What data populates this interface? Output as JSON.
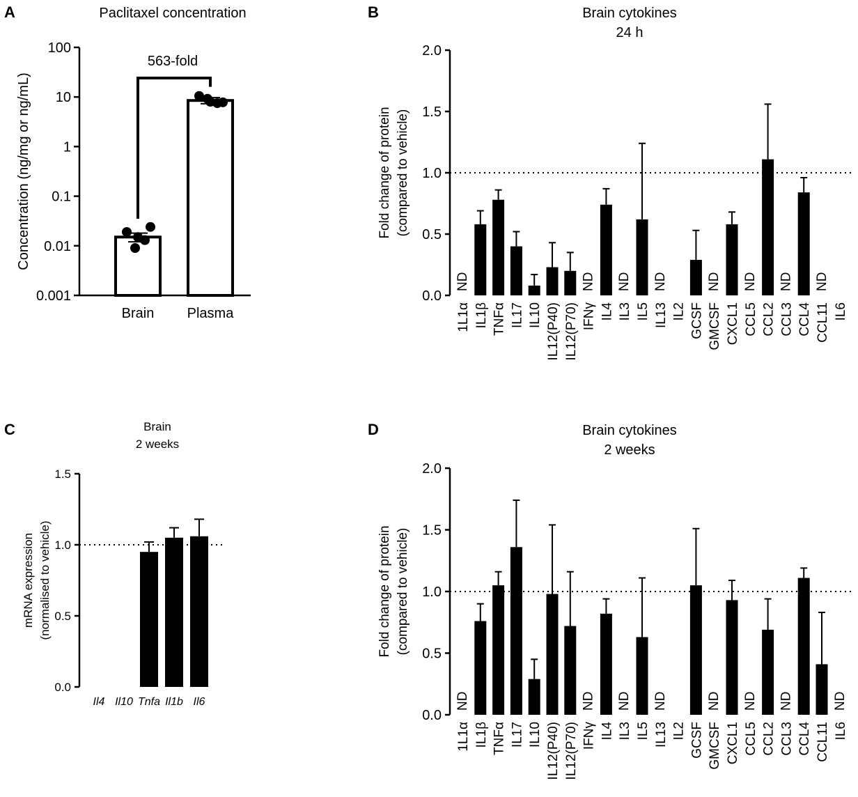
{
  "chart_data": [
    {
      "panel": "A",
      "type": "bar",
      "title": "Paclitaxel concentration",
      "ylabel": "Concentration (ng/mg or ng/mL)",
      "xlabel": "",
      "yscale": "log",
      "ylim": [
        0.001,
        100
      ],
      "yticks": [
        {
          "value": 0.001,
          "label": "0.001"
        },
        {
          "value": 0.01,
          "label": "0.01"
        },
        {
          "value": 0.1,
          "label": "0.1"
        },
        {
          "value": 1,
          "label": "1"
        },
        {
          "value": 10,
          "label": "10"
        },
        {
          "value": 100,
          "label": "100"
        }
      ],
      "categories": [
        "Brain",
        "Plasma"
      ],
      "values": [
        0.015,
        8.5
      ],
      "errors": [
        0.003,
        1.2
      ],
      "points": [
        [
          0.019,
          0.013,
          0.015,
          0.009,
          0.024
        ],
        [
          10.5,
          7.5,
          8.0,
          9.2,
          7.8
        ]
      ],
      "annotation": "563-fold"
    },
    {
      "panel": "B",
      "type": "bar",
      "title": "Brain cytokines",
      "subtitle": "24 h",
      "ylabel": "Fold change of protein",
      "ylabel2": "(compared to vehicle)",
      "xlabel": "",
      "ylim": [
        0,
        2
      ],
      "yticks": [
        {
          "value": 0,
          "label": "0.0"
        },
        {
          "value": 0.5,
          "label": "0.5"
        },
        {
          "value": 1,
          "label": "1.0"
        },
        {
          "value": 1.5,
          "label": "1.5"
        },
        {
          "value": 2,
          "label": "2.0"
        }
      ],
      "reference_line": 1.0,
      "nd_label": "ND",
      "categories": [
        "1L1α",
        "IL1β",
        "TNFα",
        "IL17",
        "IL10",
        "IL12(P40)",
        "IL12(P70)",
        "IFNγ",
        "IL4",
        "IL3",
        "IL5",
        "IL13",
        "IL2",
        "GCSF",
        "GMCSF",
        "CXCL1",
        "CCL5",
        "CCL2",
        "CCL3",
        "CCL4",
        "CCL11",
        "IL6"
      ],
      "values": [
        null,
        0.58,
        0.78,
        0.4,
        0.08,
        0.23,
        0.2,
        null,
        0.74,
        null,
        0.62,
        null,
        0,
        0.29,
        null,
        0.58,
        null,
        1.11,
        null,
        0.84,
        null,
        0
      ],
      "errors": [
        null,
        0.11,
        0.08,
        0.12,
        0.09,
        0.2,
        0.15,
        null,
        0.13,
        null,
        0.62,
        null,
        0,
        0.24,
        null,
        0.1,
        null,
        0.45,
        null,
        0.12,
        null,
        0
      ],
      "nd": [
        true,
        false,
        false,
        false,
        false,
        false,
        false,
        true,
        false,
        true,
        false,
        true,
        false,
        false,
        true,
        false,
        true,
        false,
        true,
        false,
        true,
        false
      ]
    },
    {
      "panel": "C",
      "type": "bar",
      "title": "Brain",
      "subtitle": "2 weeks",
      "ylabel": "mRNA expression",
      "ylabel2": "(normalised to vehicle)",
      "xlabel": "",
      "ylim": [
        0,
        1.5
      ],
      "yticks": [
        {
          "value": 0,
          "label": "0.0"
        },
        {
          "value": 0.5,
          "label": "0.5"
        },
        {
          "value": 1,
          "label": "1.0"
        },
        {
          "value": 1.5,
          "label": "1.5"
        }
      ],
      "reference_line": 1.0,
      "categories": [
        "Il4",
        "Il10",
        "Tnfa",
        "Il1b",
        "Il6"
      ],
      "values": [
        0,
        0,
        0.95,
        1.05,
        1.06
      ],
      "errors": [
        0,
        0,
        0.07,
        0.07,
        0.12
      ]
    },
    {
      "panel": "D",
      "type": "bar",
      "title": "Brain cytokines",
      "subtitle": "2 weeks",
      "ylabel": "Fold change of protein",
      "ylabel2": "(compared to vehicle)",
      "xlabel": "",
      "ylim": [
        0,
        2
      ],
      "yticks": [
        {
          "value": 0,
          "label": "0.0"
        },
        {
          "value": 0.5,
          "label": "0.5"
        },
        {
          "value": 1,
          "label": "1.0"
        },
        {
          "value": 1.5,
          "label": "1.5"
        },
        {
          "value": 2,
          "label": "2.0"
        }
      ],
      "reference_line": 1.0,
      "nd_label": "ND",
      "categories": [
        "1L1α",
        "IL1β",
        "TNFα",
        "IL17",
        "IL10",
        "IL12(P40)",
        "IL12(P70)",
        "IFNγ",
        "IL4",
        "IL3",
        "IL5",
        "IL13",
        "IL2",
        "GCSF",
        "GMCSF",
        "CXCL1",
        "CCL5",
        "CCL2",
        "CCL3",
        "CCL4",
        "CCL11",
        "IL6"
      ],
      "values": [
        null,
        0.76,
        1.05,
        1.36,
        0.29,
        0.98,
        0.72,
        null,
        0.82,
        null,
        0.63,
        null,
        0,
        1.05,
        null,
        0.93,
        null,
        0.69,
        null,
        1.11,
        0.41,
        null
      ],
      "errors": [
        null,
        0.14,
        0.11,
        0.38,
        0.16,
        0.56,
        0.44,
        null,
        0.12,
        null,
        0.48,
        null,
        0,
        0.46,
        null,
        0.16,
        null,
        0.25,
        null,
        0.08,
        0.42,
        null
      ],
      "nd": [
        true,
        false,
        false,
        false,
        false,
        false,
        false,
        true,
        false,
        true,
        false,
        true,
        false,
        false,
        true,
        false,
        true,
        false,
        true,
        false,
        false,
        true
      ]
    }
  ]
}
